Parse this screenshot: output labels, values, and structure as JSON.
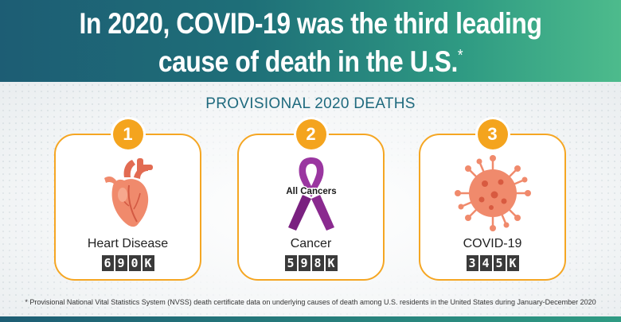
{
  "header": {
    "line1": "In 2020, COVID-19 was the third leading",
    "line2": "cause of death in the U.S.",
    "asterisk": "*"
  },
  "subtitle": "PROVISIONAL 2020 DEATHS",
  "cards": [
    {
      "rank": "1",
      "label": "Heart Disease",
      "count": "690K",
      "icon": "heart-icon"
    },
    {
      "rank": "2",
      "label": "Cancer",
      "count": "598K",
      "icon": "ribbon-icon",
      "ribbon_text": "All Cancers"
    },
    {
      "rank": "3",
      "label": "COVID-19",
      "count": "345K",
      "icon": "virus-icon"
    }
  ],
  "footnote": "* Provisional National Vital Statistics System (NVSS) death certificate data on underlying causes of death among U.S. residents in the United States during January-December 2020",
  "colors": {
    "header_start": "#1d5d74",
    "header_end": "#4dbb8c",
    "accent": "#f5a623",
    "subtitle": "#1f6a7e",
    "heart": "#f08a6c",
    "ribbon": "#8a2a8f",
    "virus": "#f08a6c"
  }
}
